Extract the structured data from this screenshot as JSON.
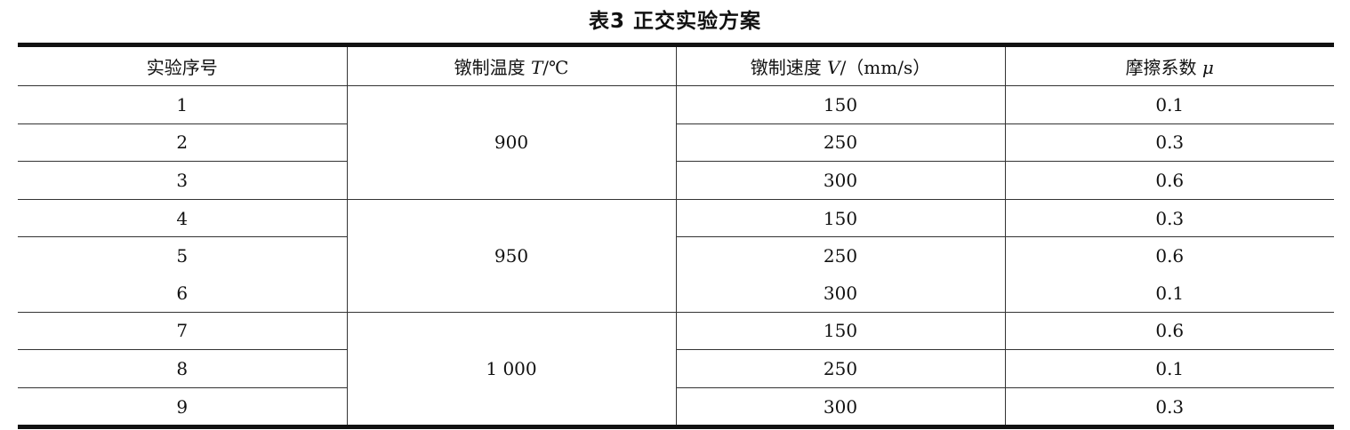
{
  "title": "表3 正交实验方案",
  "headers": {
    "c1": "实验序号",
    "c2": "镦制温度 ",
    "c2_var": "T",
    "c2_unit": "/℃",
    "c3": "镦制速度 ",
    "c3_var": "V",
    "c3_unit": "/（mm/s）",
    "c4": "摩擦系数 ",
    "c4_var": "μ"
  },
  "rows": [
    {
      "id": "1",
      "temp": "900",
      "speed": "150",
      "mu": "0.1"
    },
    {
      "id": "2",
      "speed": "250",
      "mu": "0.3"
    },
    {
      "id": "3",
      "speed": "300",
      "mu": "0.6"
    },
    {
      "id": "4",
      "temp": "950",
      "speed": "150",
      "mu": "0.3"
    },
    {
      "id": "5",
      "speed": "250",
      "mu": "0.6"
    },
    {
      "id": "6",
      "speed": "300",
      "mu": "0.1"
    },
    {
      "id": "7",
      "temp": "1 000",
      "speed": "150",
      "mu": "0.6"
    },
    {
      "id": "8",
      "speed": "250",
      "mu": "0.1"
    },
    {
      "id": "9",
      "speed": "300",
      "mu": "0.3"
    }
  ]
}
